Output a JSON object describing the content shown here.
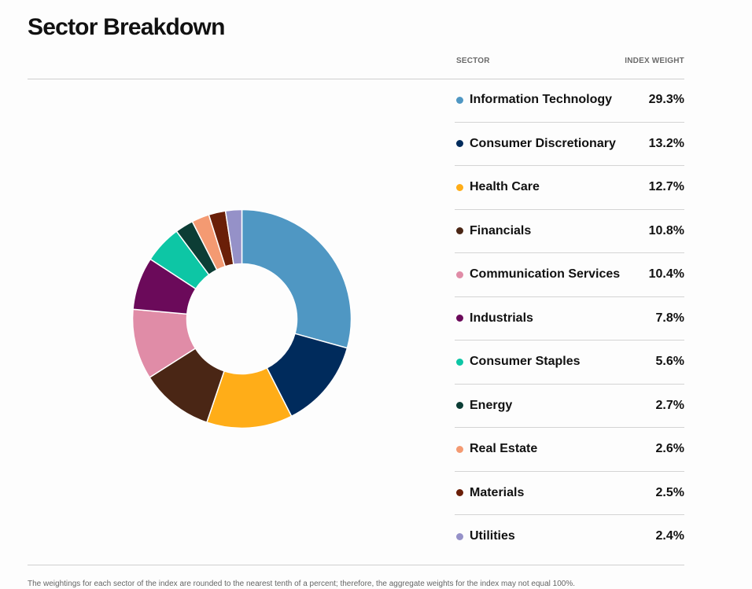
{
  "title": "Sector Breakdown",
  "table_headers": {
    "sector": "SECTOR",
    "weight": "INDEX WEIGHT"
  },
  "footnote": "The weightings for each sector of the index are rounded to the nearest tenth of a percent; therefore, the aggregate weights for the index may not equal 100%.",
  "chart_data": {
    "type": "pie",
    "style": "donut",
    "categories": [
      "Information Technology",
      "Consumer Discretionary",
      "Health Care",
      "Financials",
      "Communication Services",
      "Industrials",
      "Consumer Staples",
      "Energy",
      "Real Estate",
      "Materials",
      "Utilities"
    ],
    "values": [
      29.3,
      13.2,
      12.7,
      10.8,
      10.4,
      7.8,
      5.6,
      2.7,
      2.6,
      2.5,
      2.4
    ],
    "labels": [
      "29.3%",
      "13.2%",
      "12.7%",
      "10.8%",
      "10.4%",
      "7.8%",
      "5.6%",
      "2.7%",
      "2.6%",
      "2.5%",
      "2.4%"
    ],
    "colors": [
      "#4f97c3",
      "#002b5c",
      "#ffad18",
      "#4a2615",
      "#e08ca7",
      "#6b0a5a",
      "#0dc6a5",
      "#0c3d35",
      "#f49a72",
      "#6a1f08",
      "#9591c8"
    ],
    "legend_position": "right"
  }
}
